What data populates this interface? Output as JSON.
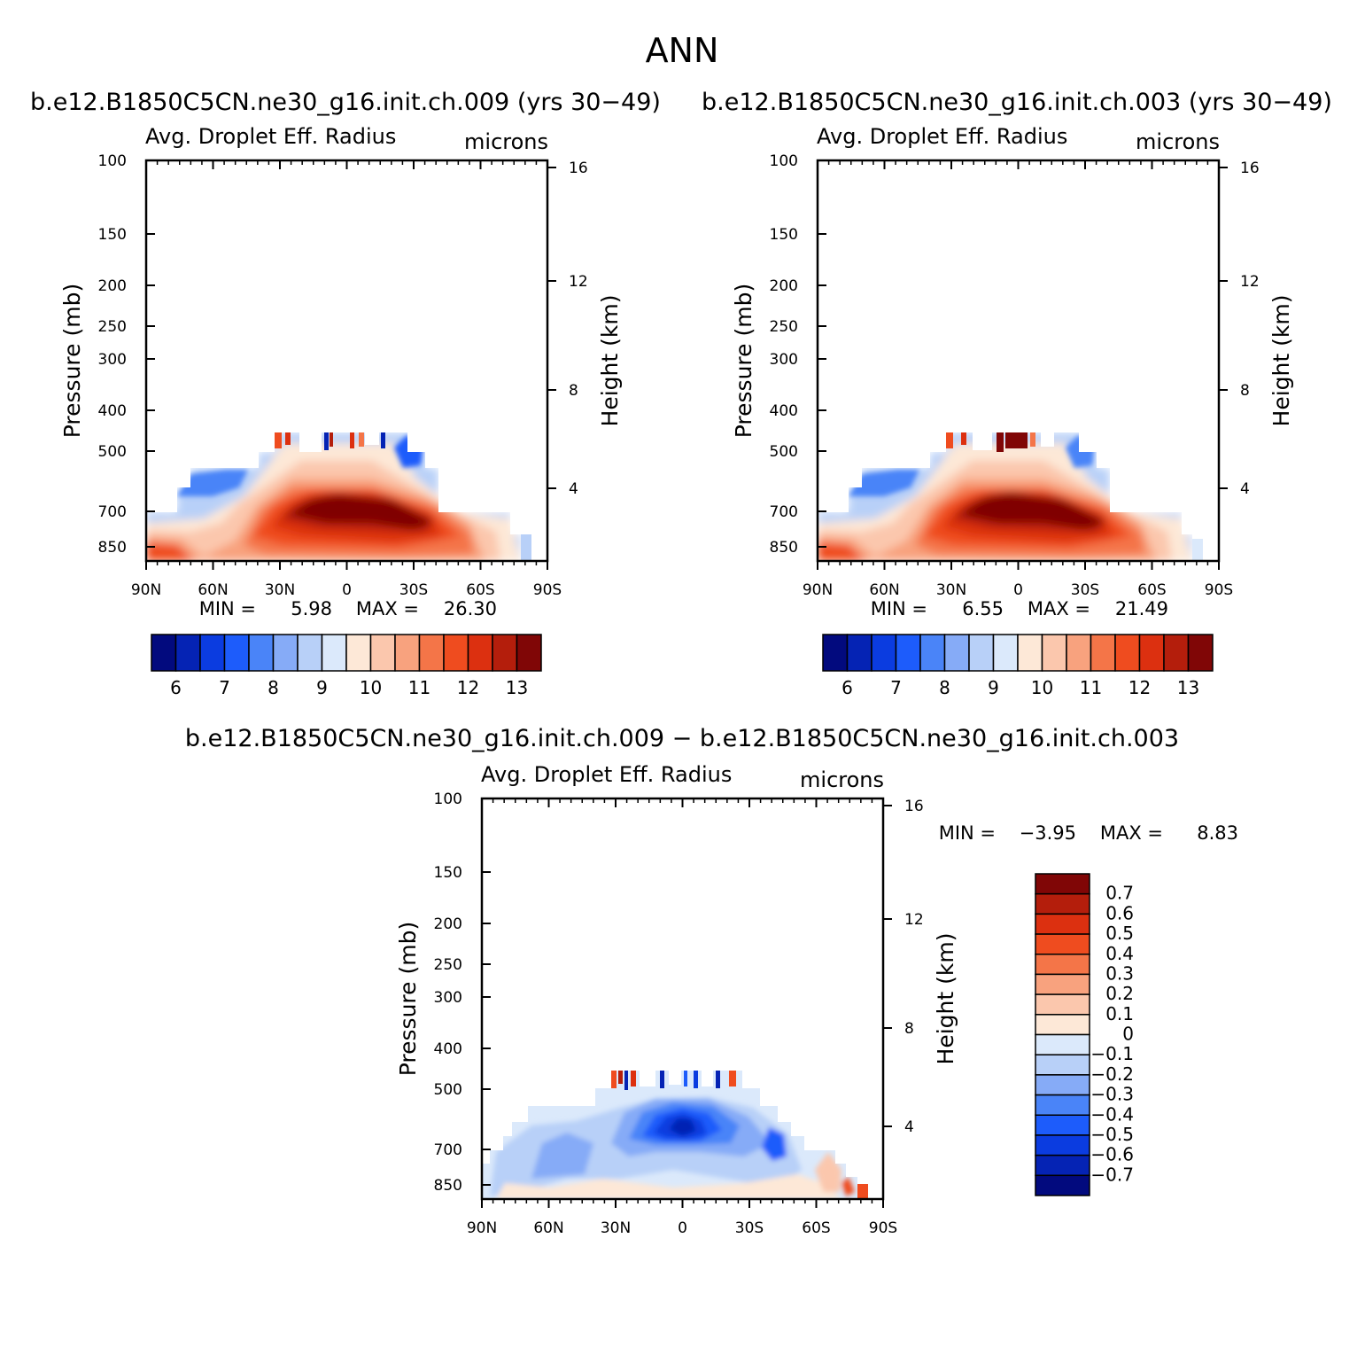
{
  "figure": {
    "title": "ANN"
  },
  "chart_data": [
    {
      "type": "heatmap",
      "subtitle": "b.e12.B1850C5CN.ne30_g16.init.ch.009 (yrs 30−49)",
      "left_header": "Avg. Droplet Eff. Radius",
      "right_header": "microns",
      "xlabel": "",
      "ylabel": "Pressure (mb)",
      "ylabel_right": "Height (km)",
      "x_ticks": [
        "90N",
        "60N",
        "30N",
        "0",
        "30S",
        "60S",
        "90S"
      ],
      "y_ticks": [
        "100",
        "150",
        "200",
        "250",
        "300",
        "400",
        "500",
        "700",
        "850"
      ],
      "y_ticks_right": [
        "16",
        "12",
        "8",
        "4"
      ],
      "min_label": "MIN =",
      "min_value": "5.98",
      "max_label": "MAX =",
      "max_value": "26.30",
      "colorbar": {
        "orientation": "horizontal",
        "labels": [
          "6",
          "7",
          "8",
          "9",
          "10",
          "11",
          "12",
          "13"
        ],
        "colors": [
          "#020a7e",
          "#0523b4",
          "#0b3ce0",
          "#1d5cfb",
          "#4a84f8",
          "#86abf7",
          "#b8d0f8",
          "#dbe9fb",
          "#fde8d7",
          "#fbc7ad",
          "#f8a27e",
          "#f47548",
          "#ef4c1f",
          "#dc3010",
          "#b41e0c",
          "#800606"
        ]
      }
    },
    {
      "type": "heatmap",
      "subtitle": "b.e12.B1850C5CN.ne30_g16.init.ch.003 (yrs 30−49)",
      "left_header": "Avg. Droplet Eff. Radius",
      "right_header": "microns",
      "xlabel": "",
      "ylabel": "Pressure (mb)",
      "ylabel_right": "Height (km)",
      "x_ticks": [
        "90N",
        "60N",
        "30N",
        "0",
        "30S",
        "60S",
        "90S"
      ],
      "y_ticks": [
        "100",
        "150",
        "200",
        "250",
        "300",
        "400",
        "500",
        "700",
        "850"
      ],
      "y_ticks_right": [
        "16",
        "12",
        "8",
        "4"
      ],
      "min_label": "MIN =",
      "min_value": "6.55",
      "max_label": "MAX =",
      "max_value": "21.49",
      "colorbar": {
        "orientation": "horizontal",
        "labels": [
          "6",
          "7",
          "8",
          "9",
          "10",
          "11",
          "12",
          "13"
        ],
        "colors": [
          "#020a7e",
          "#0523b4",
          "#0b3ce0",
          "#1d5cfb",
          "#4a84f8",
          "#86abf7",
          "#b8d0f8",
          "#dbe9fb",
          "#fde8d7",
          "#fbc7ad",
          "#f8a27e",
          "#f47548",
          "#ef4c1f",
          "#dc3010",
          "#b41e0c",
          "#800606"
        ]
      }
    },
    {
      "type": "heatmap",
      "subtitle": "b.e12.B1850C5CN.ne30_g16.init.ch.009 − b.e12.B1850C5CN.ne30_g16.init.ch.003",
      "left_header": "Avg. Droplet Eff. Radius",
      "right_header": "microns",
      "xlabel": "",
      "ylabel": "Pressure (mb)",
      "ylabel_right": "Height (km)",
      "x_ticks": [
        "90N",
        "60N",
        "30N",
        "0",
        "30S",
        "60S",
        "90S"
      ],
      "y_ticks": [
        "100",
        "150",
        "200",
        "250",
        "300",
        "400",
        "500",
        "700",
        "850"
      ],
      "y_ticks_right": [
        "16",
        "12",
        "8",
        "4"
      ],
      "min_label": "MIN =",
      "min_value": "−3.95",
      "max_label": "MAX =",
      "max_value": "8.83",
      "colorbar": {
        "orientation": "vertical",
        "labels": [
          "0.7",
          "0.6",
          "0.5",
          "0.4",
          "0.3",
          "0.2",
          "0.1",
          "0",
          "−0.1",
          "−0.2",
          "−0.3",
          "−0.4",
          "−0.5",
          "−0.6",
          "−0.7"
        ],
        "colors": [
          "#800606",
          "#b41e0c",
          "#dc3010",
          "#ef4c1f",
          "#f47548",
          "#f8a27e",
          "#fbc7ad",
          "#fde8d7",
          "#dbe9fb",
          "#b8d0f8",
          "#86abf7",
          "#4a84f8",
          "#1d5cfb",
          "#0b3ce0",
          "#0523b4",
          "#020a7e"
        ]
      }
    }
  ]
}
